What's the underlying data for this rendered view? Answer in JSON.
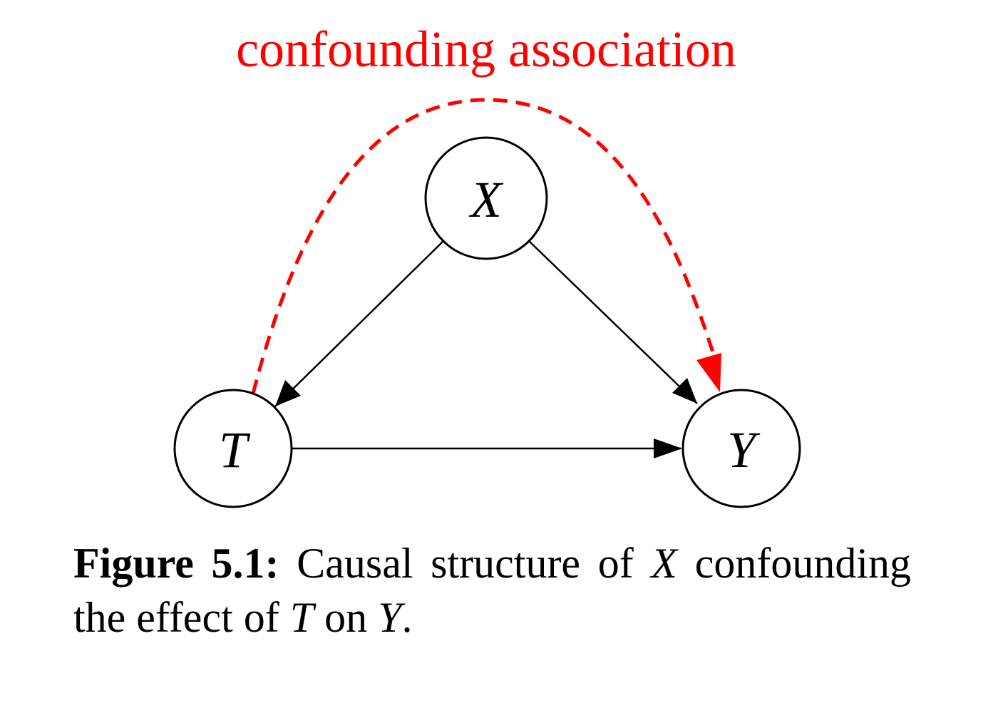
{
  "diagram": {
    "annotation": "confounding association",
    "nodes": {
      "x": "X",
      "t": "T",
      "y": "Y"
    },
    "edges": [
      {
        "from": "X",
        "to": "T",
        "style": "solid"
      },
      {
        "from": "X",
        "to": "Y",
        "style": "solid"
      },
      {
        "from": "T",
        "to": "Y",
        "style": "solid"
      },
      {
        "from": "T",
        "to": "Y",
        "style": "dashed",
        "label": "confounding association"
      }
    ],
    "colors": {
      "edge": "#000000",
      "confounding": "#ff0000"
    }
  },
  "caption": {
    "label": "Figure 5.1:",
    "text_1": "Causal structure of",
    "var_x": "X",
    "text_2": "confounding the effect of",
    "var_t": "T",
    "text_3": "on",
    "var_y": "Y",
    "text_4": "."
  }
}
